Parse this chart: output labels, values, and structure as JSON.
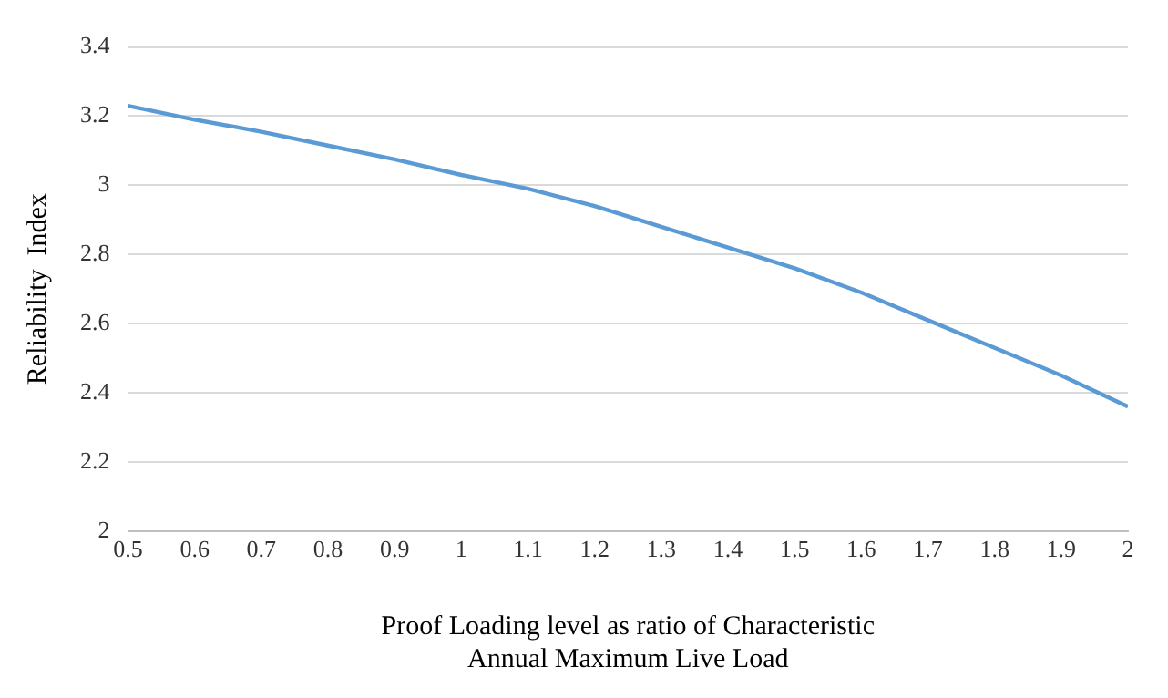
{
  "chart_data": {
    "type": "line",
    "xlabel": "Proof Loading level as ratio of Characteristic Annual Maximum Live Load",
    "ylabel": "Reliability  Index",
    "x": [
      0.5,
      0.6,
      0.7,
      0.8,
      0.9,
      1.0,
      1.1,
      1.2,
      1.3,
      1.4,
      1.5,
      1.6,
      1.7,
      1.8,
      1.9,
      2.0
    ],
    "series": [
      {
        "color": "#5b9bd5",
        "values": [
          3.23,
          3.19,
          3.155,
          3.115,
          3.075,
          3.03,
          2.99,
          2.94,
          2.88,
          2.82,
          2.76,
          2.69,
          2.61,
          2.53,
          2.45,
          2.36
        ]
      }
    ],
    "xlim": [
      0.5,
      2
    ],
    "xticks": [
      0.5,
      0.6,
      0.7,
      0.8,
      0.9,
      1,
      1.1,
      1.2,
      1.3,
      1.4,
      1.5,
      1.6,
      1.7,
      1.8,
      1.9,
      2
    ],
    "ylim": [
      2,
      3.4
    ],
    "yticks": [
      2,
      2.2,
      2.4,
      2.6,
      2.8,
      3,
      3.2,
      3.4
    ],
    "grid": "y",
    "legend": false,
    "marker": "none",
    "line_style": "solid"
  }
}
